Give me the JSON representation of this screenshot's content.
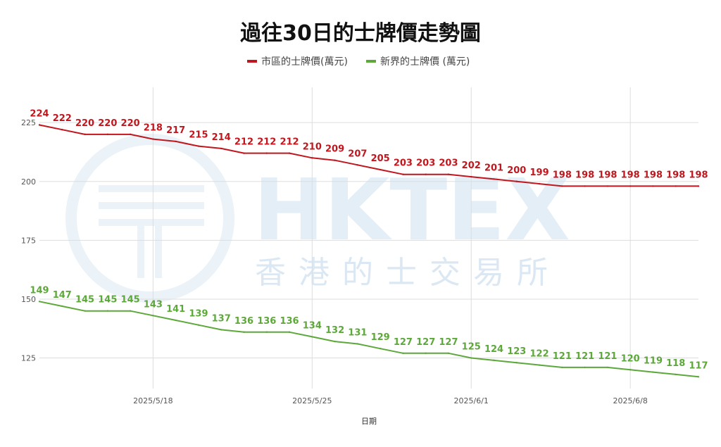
{
  "chart_data": {
    "type": "line",
    "title": "過往30日的士牌價走勢圖",
    "xlabel": "日期",
    "ylabel": "",
    "x_ticks": [
      "2025/5/18",
      "2025/5/25",
      "2025/6/1",
      "2025/6/8"
    ],
    "y_ticks": [
      125,
      150,
      175,
      200,
      225
    ],
    "ylim": [
      112,
      240
    ],
    "legend_position": "top",
    "grid": true,
    "watermark": {
      "brand": "HKTEX",
      "tagline": "香港的士交易所"
    },
    "series": [
      {
        "name": "市區的士牌價(萬元)",
        "color": "#c0171e",
        "values": [
          224,
          222,
          220,
          220,
          220,
          218,
          217,
          215,
          214,
          212,
          212,
          212,
          210,
          209,
          207,
          205,
          203,
          203,
          203,
          202,
          201,
          200,
          199,
          198,
          198,
          198,
          198,
          198,
          198,
          198
        ]
      },
      {
        "name": "新界的士牌價 (萬元)",
        "color": "#5da83a",
        "values": [
          149,
          147,
          145,
          145,
          145,
          143,
          141,
          139,
          137,
          136,
          136,
          136,
          134,
          132,
          131,
          129,
          127,
          127,
          127,
          125,
          124,
          123,
          122,
          121,
          121,
          121,
          120,
          119,
          118,
          117
        ]
      }
    ]
  }
}
